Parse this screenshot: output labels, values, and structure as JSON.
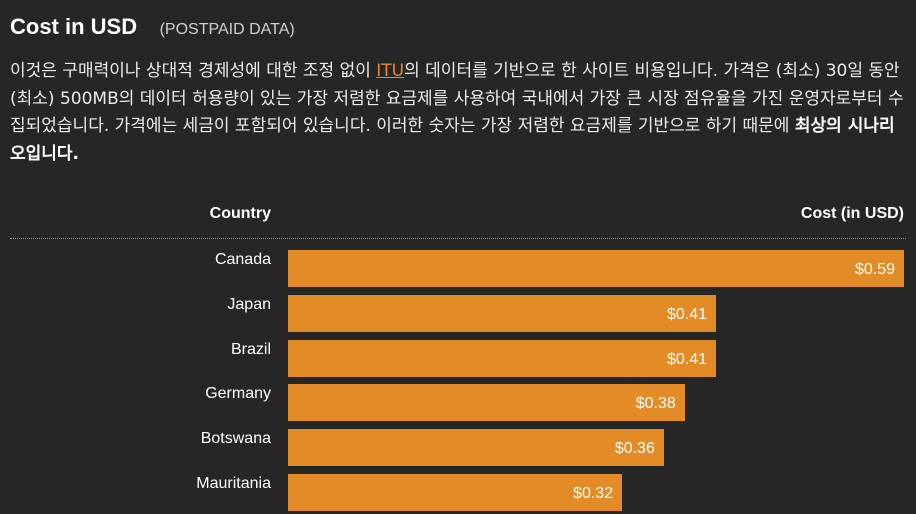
{
  "header": {
    "title": "Cost in USD",
    "subtitle": "(POSTPAID DATA)"
  },
  "description": {
    "part1": "이것은 구매력이나 상대적 경제성에 대한 조정 없이 ",
    "link": "ITU",
    "part2": "의 데이터를 기반으로 한 사이트 비용입니다. 가격은 (최소) 30일 동안 (최소) 500MB의 데이터 허용량이 있는 가장 저렴한 요금제를 사용하여 국내에서 가장 큰 시장 점유율을 가진 운영자로부터 수집되었습니다. 가격에는 세금이 포함되어 있습니다. 이러한 숫자는 가장 저렴한 요금제를 기반으로 하기 때문에 ",
    "bold": "최상의 시나리오입니다."
  },
  "colors": {
    "bar": "#e38b27",
    "background": "#262626",
    "link": "#e8892b"
  },
  "chart_data": {
    "type": "bar",
    "orientation": "horizontal",
    "column_headers": {
      "category": "Country",
      "value": "Cost (in USD)"
    },
    "categories": [
      "Canada",
      "Japan",
      "Brazil",
      "Germany",
      "Botswana",
      "Mauritania"
    ],
    "values": [
      0.59,
      0.41,
      0.41,
      0.38,
      0.36,
      0.32
    ],
    "value_labels": [
      "$0.59",
      "$0.41",
      "$0.41",
      "$0.38",
      "$0.36",
      "$0.32"
    ],
    "xlim": [
      0,
      0.59
    ],
    "grid": false
  }
}
